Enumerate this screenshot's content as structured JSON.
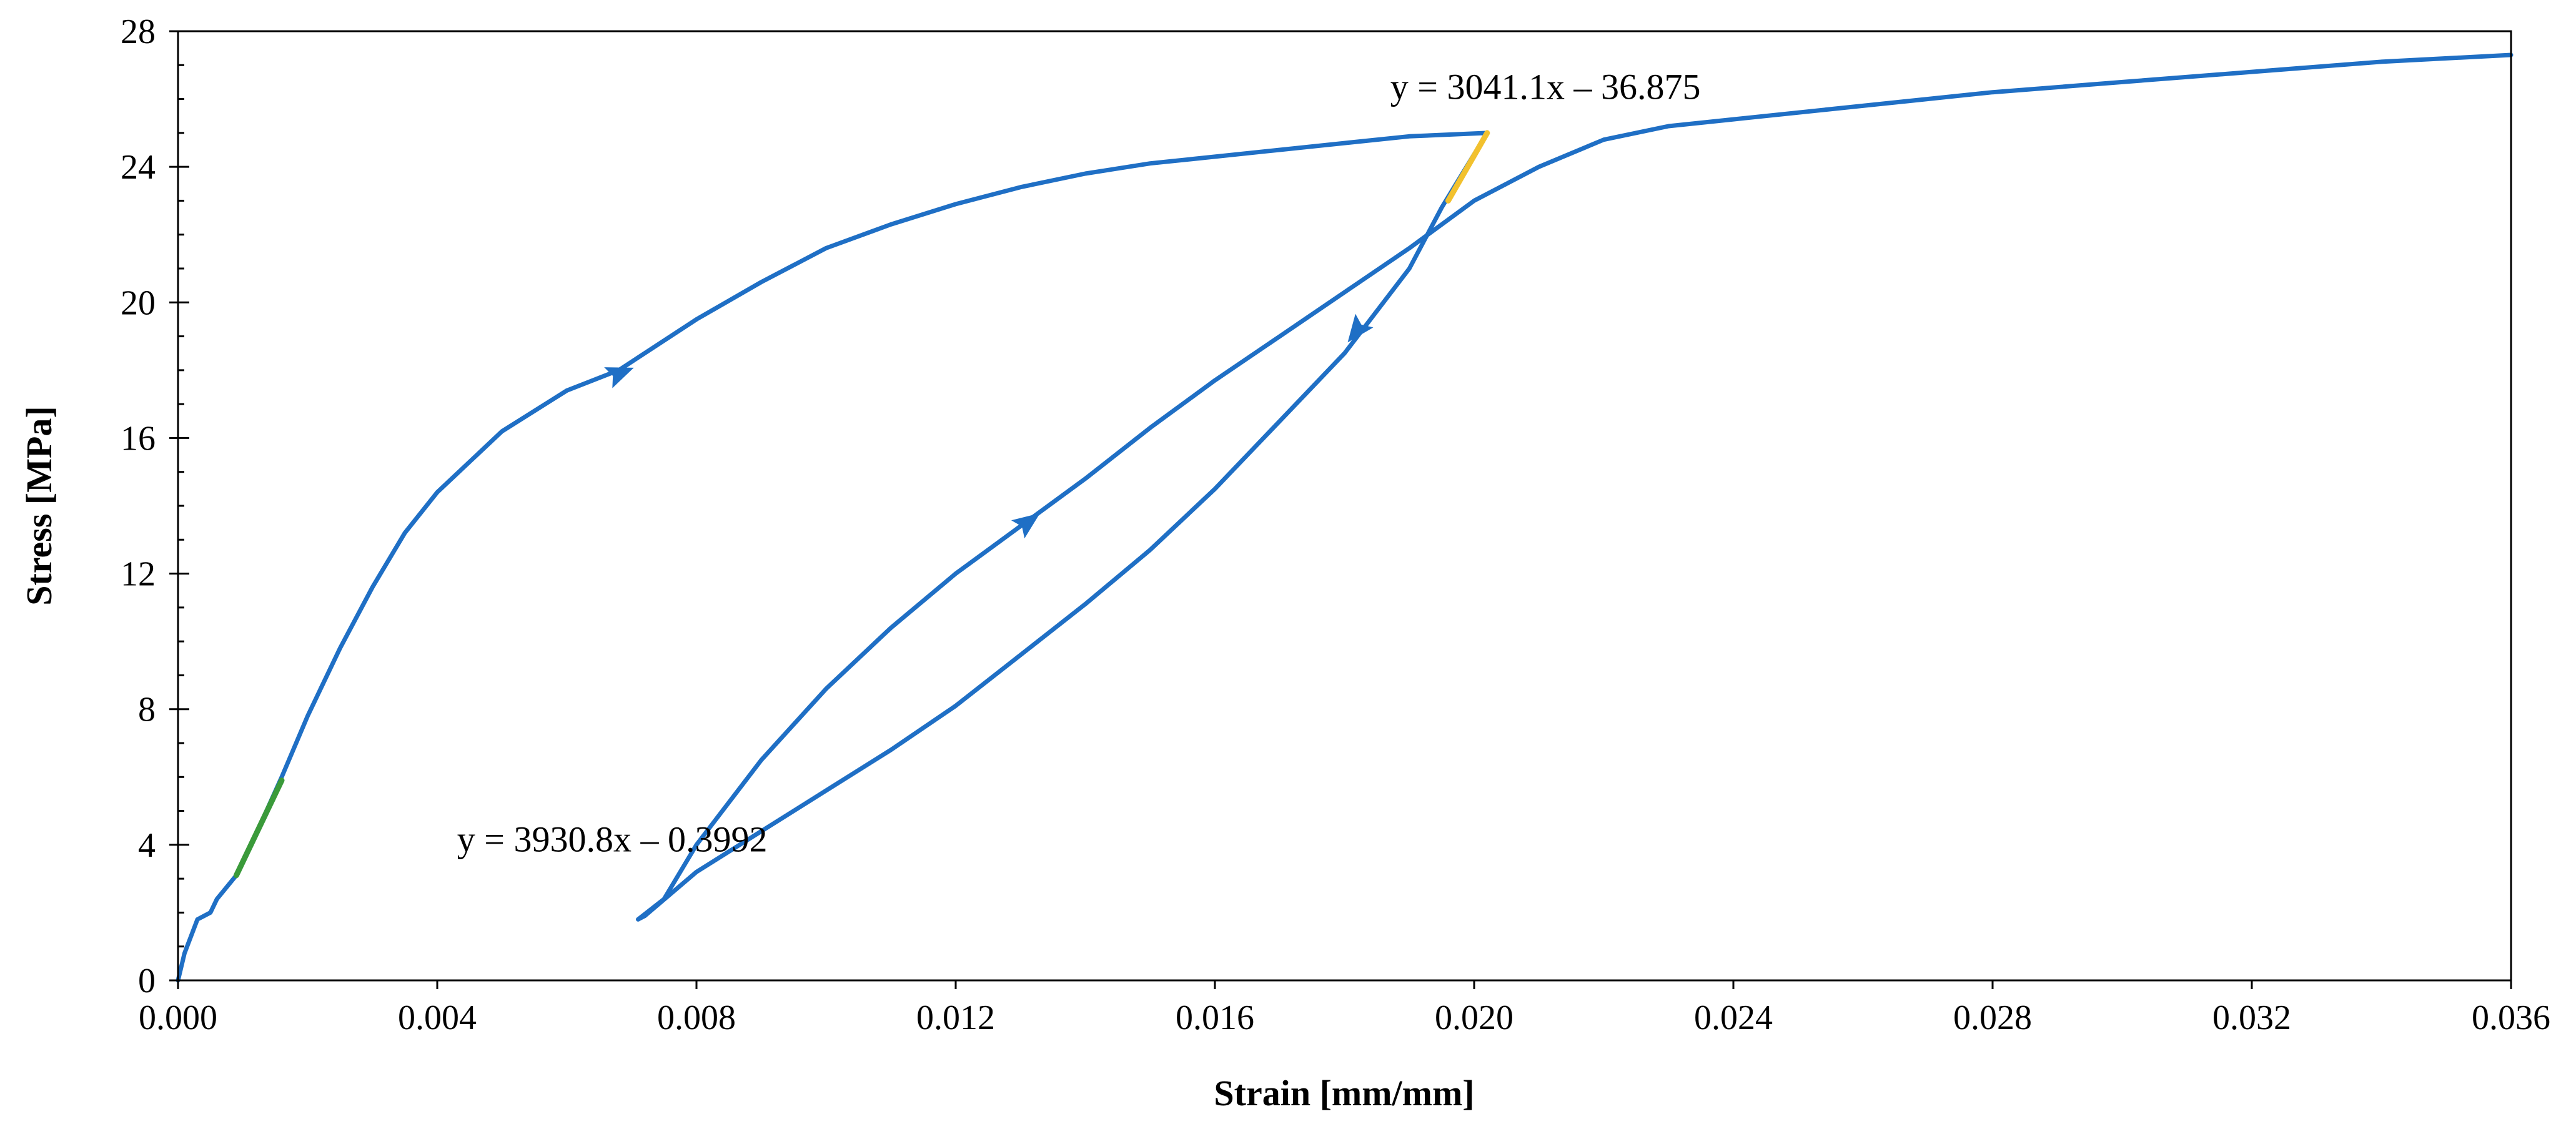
{
  "chart_data": {
    "type": "line",
    "title": "",
    "xlabel": "Strain [mm/mm]",
    "ylabel": "Stress [MPa]",
    "xlim": [
      0,
      0.036
    ],
    "ylim": [
      0,
      28
    ],
    "x_ticks": [
      0,
      0.004,
      0.008,
      0.012,
      0.016,
      0.02,
      0.024,
      0.028,
      0.032,
      0.036
    ],
    "x_tick_labels": [
      "0.000",
      "0.004",
      "0.008",
      "0.012",
      "0.016",
      "0.020",
      "0.024",
      "0.028",
      "0.032",
      "0.036"
    ],
    "y_ticks": [
      0,
      4,
      8,
      12,
      16,
      20,
      24,
      28
    ],
    "y_tick_labels": [
      "0",
      "4",
      "8",
      "12",
      "16",
      "20",
      "24",
      "28"
    ],
    "grid": false,
    "legend": "none",
    "series": [
      {
        "color": "#1f6fc5",
        "x": [
          0.0,
          0.0001,
          0.0003,
          0.0004,
          0.0005,
          0.0006,
          0.0009,
          0.0012,
          0.0016,
          0.002,
          0.0025,
          0.003,
          0.0035,
          0.004,
          0.005,
          0.006,
          0.0068,
          0.008,
          0.009,
          0.01,
          0.011,
          0.012,
          0.013,
          0.014,
          0.015,
          0.016,
          0.017,
          0.018,
          0.019,
          0.0202
        ],
        "y": [
          0.0,
          0.8,
          1.8,
          1.9,
          2.0,
          2.4,
          3.1,
          4.3,
          6.0,
          7.8,
          9.8,
          11.6,
          13.2,
          14.4,
          16.2,
          17.4,
          18.0,
          19.5,
          20.6,
          21.6,
          22.3,
          22.9,
          23.4,
          23.8,
          24.1,
          24.3,
          24.5,
          24.7,
          24.9,
          25.0
        ]
      },
      {
        "color": "#1f6fc5",
        "x": [
          0.0202,
          0.0195,
          0.019,
          0.018,
          0.017,
          0.016,
          0.015,
          0.014,
          0.013,
          0.012,
          0.011,
          0.01,
          0.009,
          0.008,
          0.0072,
          0.0071
        ],
        "y": [
          25.0,
          22.8,
          21.0,
          18.5,
          16.5,
          14.5,
          12.7,
          11.1,
          9.6,
          8.1,
          6.8,
          5.6,
          4.4,
          3.2,
          1.9,
          1.8
        ]
      },
      {
        "color": "#1f6fc5",
        "x": [
          0.0071,
          0.0075,
          0.008,
          0.009,
          0.01,
          0.011,
          0.012,
          0.013,
          0.014,
          0.015,
          0.016,
          0.017,
          0.018,
          0.019,
          0.02,
          0.021,
          0.022,
          0.023,
          0.024,
          0.026,
          0.028,
          0.03,
          0.032,
          0.034,
          0.036
        ],
        "y": [
          1.8,
          2.4,
          4.0,
          6.5,
          8.6,
          10.4,
          12.0,
          13.4,
          14.8,
          16.3,
          17.7,
          19.0,
          20.3,
          21.6,
          23.0,
          24.0,
          24.8,
          25.2,
          25.4,
          25.8,
          26.2,
          26.5,
          26.8,
          27.1,
          27.3
        ]
      },
      {
        "color": "#3a9a3a",
        "x": [
          0.0009,
          0.0016
        ],
        "y": [
          3.1,
          5.9
        ]
      },
      {
        "color": "#f2c12e",
        "x": [
          0.0196,
          0.0202
        ],
        "y": [
          23.0,
          25.0
        ]
      }
    ],
    "arrows": [
      {
        "x": 0.0068,
        "y": 17.9,
        "direction": "up"
      },
      {
        "x": 0.0131,
        "y": 13.5,
        "direction": "up"
      },
      {
        "x": 0.0182,
        "y": 19.2,
        "direction": "down"
      }
    ],
    "annotations": [
      {
        "text": "y = 3041.1x – 36.875",
        "x": 0.0211,
        "y": 26.0
      },
      {
        "text": "y = 3930.8x – 0.3992",
        "x": 0.0067,
        "y": 3.8
      }
    ]
  }
}
